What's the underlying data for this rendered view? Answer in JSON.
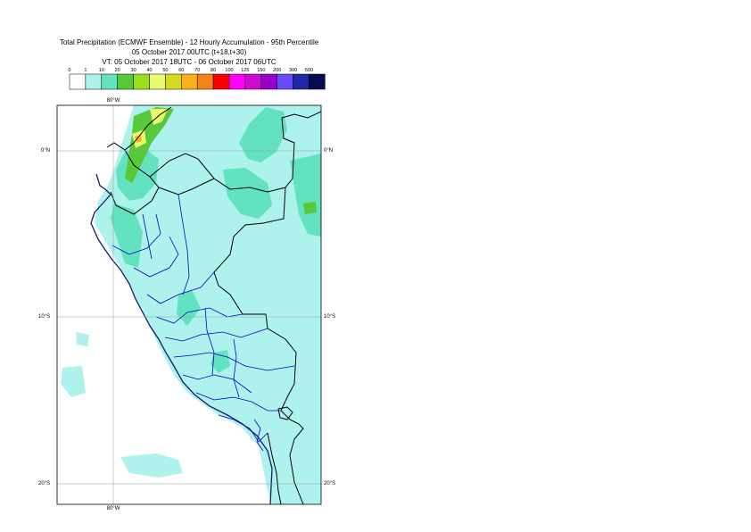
{
  "titles": {
    "line1": "Total Precipitation (ECMWF Ensemble) - 12 Hourly Accumulation - 95th Percentile",
    "line2": "05 October 2017 00UTC (t+18,t+30)",
    "line3": "VT: 05 October 2017 18UTC - 06 October 2017 06UTC"
  },
  "legend": {
    "thresholds": [
      "0",
      "1",
      "10",
      "20",
      "30",
      "40",
      "50",
      "60",
      "70",
      "80",
      "100",
      "125",
      "150",
      "200",
      "300",
      "500"
    ],
    "colors": [
      "#ffffff",
      "#aef2ee",
      "#62e2be",
      "#56c83a",
      "#9ae01a",
      "#e9fb6e",
      "#d7d91e",
      "#fbb21a",
      "#f6821a",
      "#fc0000",
      "#ff00ff",
      "#ce0ccf",
      "#9800c8",
      "#6a49f8",
      "#2128a8",
      "#0a0a4e"
    ]
  },
  "map": {
    "lon_labels": {
      "top": "80°W",
      "bottom": "80°W"
    },
    "lat_labels": [
      "0°N",
      "10°S",
      "20°S"
    ],
    "colors": {
      "land_low": "#aef2ee",
      "land_mid": "#62e2be",
      "high_green": "#56c83a",
      "high_yellow": "#e9fb6e",
      "high_orange": "#fbb21a",
      "country_border": "#000000",
      "region_border": "#0000cc",
      "grid": "#999999"
    }
  }
}
